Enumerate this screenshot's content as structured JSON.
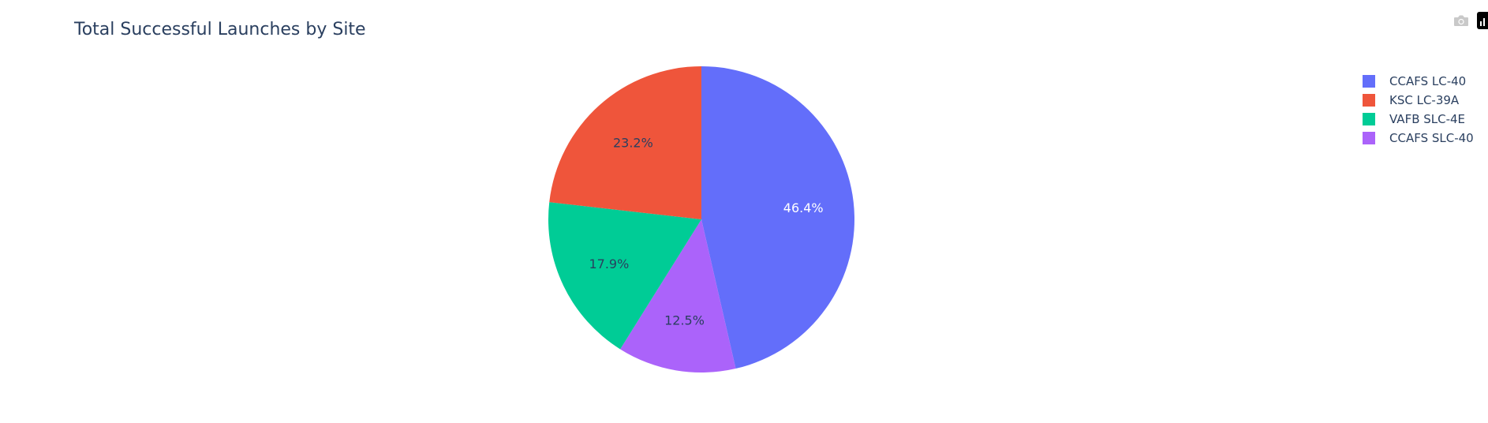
{
  "chart_data": {
    "type": "pie",
    "title": "Total Successful Launches by Site",
    "categories": [
      "CCAFS LC-40",
      "KSC LC-39A",
      "VAFB SLC-4E",
      "CCAFS SLC-40"
    ],
    "values": [
      46.4,
      23.2,
      17.9,
      12.5
    ],
    "labels": [
      "46.4%",
      "23.2%",
      "17.9%",
      "12.5%"
    ],
    "colors": [
      "#636efa",
      "#EF553B",
      "#00cc96",
      "#ab63fa"
    ],
    "label_colors": [
      "#ffffff",
      "#2a3f5f",
      "#2a3f5f",
      "#2a3f5f"
    ],
    "sort_order": [
      "CCAFS LC-40",
      "CCAFS SLC-40",
      "VAFB SLC-4E",
      "KSC LC-39A"
    ],
    "direction": "clockwise",
    "start": "12 o'clock",
    "legend_position": "top-right"
  },
  "modebar": {
    "icons": [
      "camera-icon",
      "plotly-logo-icon"
    ]
  }
}
